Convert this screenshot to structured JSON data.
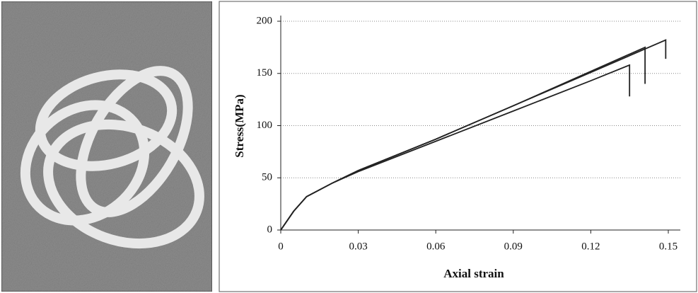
{
  "chart_data": {
    "type": "line",
    "xlabel": "Axial strain",
    "ylabel": "Stress(MPa)",
    "xlim": [
      0,
      0.15
    ],
    "ylim": [
      0,
      200
    ],
    "xticks": [
      0,
      0.03,
      0.06,
      0.09,
      0.12,
      0.15
    ],
    "yticks": [
      0,
      50,
      100,
      150,
      200
    ],
    "grid": true,
    "series": [
      {
        "color": "#222222",
        "x": [
          0,
          0.005,
          0.01,
          0.02,
          0.03,
          0.06,
          0.09,
          0.12,
          0.135,
          0.135
        ],
        "values": [
          0,
          18,
          32,
          45,
          56,
          85,
          114,
          143,
          158,
          128
        ]
      },
      {
        "color": "#222222",
        "x": [
          0,
          0.005,
          0.01,
          0.02,
          0.03,
          0.06,
          0.09,
          0.12,
          0.141,
          0.141
        ],
        "values": [
          0,
          18,
          32,
          45,
          57,
          87,
          119,
          152,
          175,
          140
        ]
      },
      {
        "color": "#222222",
        "x": [
          0,
          0.005,
          0.01,
          0.02,
          0.03,
          0.06,
          0.09,
          0.12,
          0.149,
          0.149
        ],
        "values": [
          0,
          18,
          32,
          45,
          57,
          87,
          119,
          151,
          182,
          164
        ]
      }
    ]
  }
}
